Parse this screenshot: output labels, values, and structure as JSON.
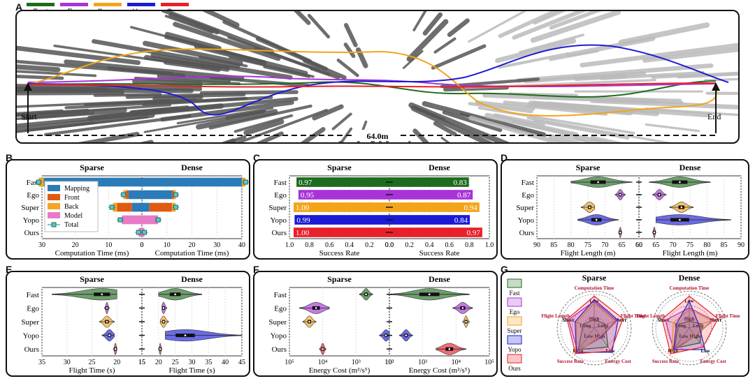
{
  "panels": {
    "A": "A",
    "B": "B",
    "C": "C",
    "D": "D",
    "E": "E",
    "F": "F",
    "G": "G"
  },
  "methods": [
    {
      "name": "Fast",
      "color": "#1e6b1e"
    },
    {
      "name": "Ego",
      "color": "#a833d6"
    },
    {
      "name": "Super",
      "color": "#f2a51a"
    },
    {
      "name": "Yopo",
      "color": "#1b1bd6"
    },
    {
      "name": "Ours",
      "color": "#e8202a"
    }
  ],
  "panelA": {
    "start": "Start",
    "end": "End",
    "distance": "64.0m"
  },
  "chart_data": [
    {
      "id": "B",
      "type": "bar",
      "categories": [
        "Fast",
        "Ego",
        "Super",
        "Yopo",
        "Ours"
      ],
      "groups": [
        "Sparse",
        "Dense"
      ],
      "xlabel": "Computation Time (ms)",
      "xticks_sparse": [
        "30",
        "20",
        "10",
        "0"
      ],
      "xticks_dense": [
        "0",
        "10",
        "20",
        "30",
        "40"
      ],
      "xlim": [
        0,
        43
      ],
      "legend": [
        "Mapping",
        "Front",
        "Back",
        "Model",
        "Total"
      ],
      "colors": {
        "Mapping": "#2b7bb9",
        "Front": "#e05a12",
        "Back": "#f5a623",
        "Model": "#e87bc7",
        "Total": "#5ec7c0"
      },
      "sparse": {
        "Mapping": [
          29.5,
          4,
          3,
          0,
          0
        ],
        "Front": [
          0,
          0.8,
          4.5,
          0,
          0
        ],
        "Back": [
          1.5,
          0.8,
          1.2,
          0,
          0
        ],
        "Model": [
          0,
          0,
          0,
          6,
          1
        ],
        "Total": [
          31,
          5.5,
          9,
          6.5,
          1
        ]
      },
      "dense": {
        "Mapping": [
          40,
          12,
          3,
          0,
          0
        ],
        "Front": [
          0,
          0.8,
          9,
          0,
          0
        ],
        "Back": [
          1.5,
          0.8,
          1.5,
          0,
          0
        ],
        "Model": [
          0,
          0,
          0,
          6.5,
          1
        ],
        "Total": [
          41.5,
          13.5,
          13.5,
          6.5,
          1
        ]
      }
    },
    {
      "id": "C",
      "type": "bar",
      "categories": [
        "Fast",
        "Ego",
        "Super",
        "Yopo",
        "Ours"
      ],
      "groups": [
        "Sparse",
        "Dense"
      ],
      "xlabel": "Success Rate",
      "xticks_sparse": [
        "1.0",
        "0.8",
        "0.6",
        "0.4",
        "0.2",
        "0.0"
      ],
      "xticks_dense": [
        "0.0",
        "0.2",
        "0.4",
        "0.6",
        "0.8",
        "1.0"
      ],
      "xlim": [
        0,
        1
      ],
      "sparse": [
        0.97,
        0.95,
        1.0,
        0.99,
        1.0
      ],
      "dense": [
        0.83,
        0.87,
        0.94,
        0.84,
        0.97
      ],
      "sparse_labels": [
        "0.97",
        "0.95",
        "1.00",
        "0.99",
        "1.00"
      ],
      "dense_labels": [
        "0.83",
        "0.87",
        "0.94",
        "0.84",
        "0.97"
      ]
    },
    {
      "id": "D",
      "type": "violin",
      "categories": [
        "Fast",
        "Ego",
        "Super",
        "Yopo",
        "Ours"
      ],
      "groups": [
        "Sparse",
        "Dense"
      ],
      "xlabel": "Flight Length (m)",
      "xticks_sparse": [
        "90",
        "85",
        "80",
        "75",
        "70",
        "65",
        "60"
      ],
      "xticks_dense": [
        "60",
        "65",
        "70",
        "75",
        "80",
        "85",
        "90"
      ],
      "xlim": [
        60,
        90
      ],
      "sparse": [
        {
          "median": 72,
          "spread": 6,
          "min": 62,
          "max": 80
        },
        {
          "median": 65.5,
          "spread": 1.8,
          "min": 64,
          "max": 67
        },
        {
          "median": 74.5,
          "spread": 2.5,
          "min": 73,
          "max": 77
        },
        {
          "median": 72.5,
          "spread": 4,
          "min": 66,
          "max": 78
        },
        {
          "median": 65.5,
          "spread": 0.6,
          "min": 65,
          "max": 66
        }
      ],
      "dense": [
        {
          "median": 72,
          "spread": 5,
          "min": 63,
          "max": 81
        },
        {
          "median": 66,
          "spread": 2,
          "min": 64,
          "max": 68
        },
        {
          "median": 72.5,
          "spread": 4,
          "min": 69,
          "max": 76
        },
        {
          "median": 72,
          "spread": 7,
          "min": 65,
          "max": 87
        },
        {
          "median": 64.5,
          "spread": 0.6,
          "min": 64,
          "max": 65
        }
      ]
    },
    {
      "id": "E",
      "type": "violin",
      "categories": [
        "Fast",
        "Ego",
        "Super",
        "Yopo",
        "Ours"
      ],
      "groups": [
        "Sparse",
        "Dense"
      ],
      "xlabel": "Flight Time (s)",
      "xticks_sparse": [
        "35",
        "30",
        "25",
        "20",
        "15"
      ],
      "xticks_dense": [
        "15",
        "20",
        "25",
        "30",
        "35",
        "40",
        "45"
      ],
      "sparse_lim": [
        15,
        35
      ],
      "dense_lim": [
        15,
        45
      ],
      "sparse": [
        {
          "median": 23,
          "spread": 6,
          "min": 20,
          "max": 33
        },
        {
          "median": 22,
          "spread": 0.8,
          "min": 21.5,
          "max": 22.5
        },
        {
          "median": 22,
          "spread": 2,
          "min": 20.5,
          "max": 23.5
        },
        {
          "median": 21.5,
          "spread": 1.5,
          "min": 20.5,
          "max": 23
        },
        {
          "median": 20.3,
          "spread": 0.5,
          "min": 20,
          "max": 20.7
        }
      ],
      "dense": [
        {
          "median": 25,
          "spread": 5,
          "min": 20,
          "max": 33
        },
        {
          "median": 21.5,
          "spread": 1,
          "min": 21,
          "max": 22.5
        },
        {
          "median": 21.5,
          "spread": 1.5,
          "min": 20.5,
          "max": 23
        },
        {
          "median": 28,
          "spread": 8,
          "min": 22,
          "max": 45
        },
        {
          "median": 20.5,
          "spread": 0.5,
          "min": 20,
          "max": 21
        }
      ]
    },
    {
      "id": "F",
      "type": "violin",
      "categories": [
        "Fast",
        "Ego",
        "Super",
        "Yopo",
        "Ours"
      ],
      "groups": [
        "Sparse",
        "Dense"
      ],
      "xlabel": "Energy Cost (m²/s⁵)",
      "xticks_sparse": [
        "10⁵",
        "10⁴",
        "10³",
        "10²"
      ],
      "xticks_dense": [
        "10²",
        "10³",
        "10⁴",
        "10⁵"
      ],
      "scale": "log",
      "sparse_loglim": [
        2,
        5
      ],
      "dense_loglim": [
        2,
        5
      ],
      "sparse": [
        {
          "median": 2.7,
          "spread": 0.3,
          "min": 2.5,
          "max": 2.9
        },
        {
          "median": 4.2,
          "spread": 0.6,
          "min": 3.8,
          "max": 4.7
        },
        {
          "median": 4.4,
          "spread": 0.3,
          "min": 4.2,
          "max": 4.6
        },
        {
          "median": 2.1,
          "spread": 0.2,
          "min": 2.0,
          "max": 2.3
        },
        {
          "median": 4.0,
          "spread": 0.15,
          "min": 3.9,
          "max": 4.1
        }
      ],
      "dense": [
        {
          "median": 3.2,
          "spread": 2.0,
          "min": 2.0,
          "max": 4.4
        },
        {
          "median": 4.2,
          "spread": 0.4,
          "min": 3.9,
          "max": 4.5
        },
        {
          "median": 4.3,
          "spread": 0.2,
          "min": 4.2,
          "max": 4.4
        },
        {
          "median": 2.5,
          "spread": 0.25,
          "min": 2.3,
          "max": 2.7
        },
        {
          "median": 3.8,
          "spread": 0.4,
          "min": 3.4,
          "max": 4.3
        }
      ]
    },
    {
      "id": "G",
      "type": "radar",
      "groups": [
        "Sparse",
        "Dense"
      ],
      "axes": [
        "Computation Time",
        "Flight Time",
        "Energy Cost",
        "Success Rate",
        "Flight Length"
      ],
      "axis_annotations": {
        "inner": [
          "High",
          "Long",
          "High",
          "Low",
          "Long"
        ],
        "outer": [
          "Low",
          "Short",
          "Low",
          "High",
          "Short"
        ]
      },
      "legend": [
        "Fast",
        "Ego",
        "Super",
        "Yopo",
        "Ours"
      ],
      "sparse": {
        "Fast": [
          0.25,
          0.35,
          0.7,
          0.8,
          0.35
        ],
        "Ego": [
          0.8,
          0.7,
          0.35,
          0.85,
          0.8
        ],
        "Super": [
          0.75,
          0.65,
          0.3,
          0.95,
          0.55
        ],
        "Yopo": [
          0.85,
          0.75,
          0.9,
          0.9,
          0.6
        ],
        "Ours": [
          0.95,
          0.9,
          0.85,
          0.95,
          0.85
        ]
      },
      "dense": {
        "Fast": [
          0.2,
          0.4,
          0.55,
          0.75,
          0.35
        ],
        "Ego": [
          0.6,
          0.75,
          0.3,
          0.8,
          0.75
        ],
        "Super": [
          0.55,
          0.7,
          0.3,
          0.9,
          0.5
        ],
        "Yopo": [
          0.8,
          0.3,
          0.8,
          0.8,
          0.4
        ],
        "Ours": [
          0.95,
          0.9,
          0.7,
          0.95,
          0.85
        ]
      }
    }
  ]
}
